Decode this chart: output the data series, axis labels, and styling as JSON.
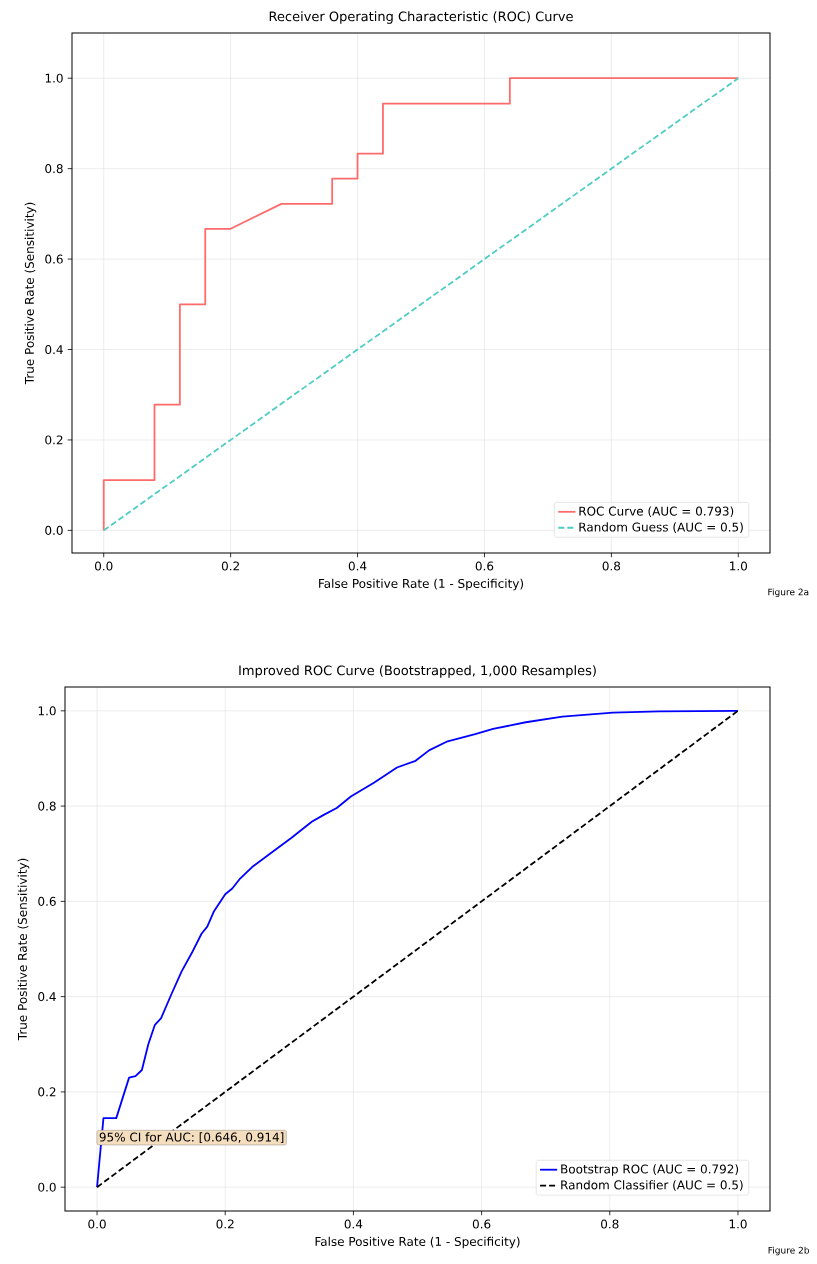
{
  "chart_data": [
    {
      "type": "line",
      "title": "Receiver Operating Characteristic (ROC) Curve",
      "xlabel": "False Positive Rate (1 - Specificity)",
      "ylabel": "True Positive Rate (Sensitivity)",
      "xlim": [
        -0.05,
        1.05
      ],
      "ylim": [
        -0.05,
        1.1
      ],
      "xticks": [
        {
          "value": 0,
          "label": "0.0"
        },
        {
          "value": 0.2,
          "label": "0.2"
        },
        {
          "value": 0.4,
          "label": "0.4"
        },
        {
          "value": 0.6,
          "label": "0.6"
        },
        {
          "value": 0.8,
          "label": "0.8"
        },
        {
          "value": 1,
          "label": "1.0"
        }
      ],
      "yticks": [
        {
          "value": 0,
          "label": "0.0"
        },
        {
          "value": 0.2,
          "label": "0.2"
        },
        {
          "value": 0.4,
          "label": "0.4"
        },
        {
          "value": 0.6,
          "label": "0.6"
        },
        {
          "value": 0.8,
          "label": "0.8"
        },
        {
          "value": 1,
          "label": "1.0"
        }
      ],
      "grid": true,
      "legend": "bottom right",
      "marker": "none",
      "series": [
        {
          "name": "ROC Curve (AUC = 0.793)",
          "color": "#ff6b6b",
          "line_style": "solid",
          "x": [
            0,
            0,
            0.08,
            0.08,
            0.12,
            0.12,
            0.16,
            0.16,
            0.2,
            0.28,
            0.36,
            0.36,
            0.4,
            0.4,
            0.44,
            0.44,
            0.64,
            0.64,
            1
          ],
          "values": [
            0,
            0.111,
            0.111,
            0.278,
            0.278,
            0.5,
            0.5,
            0.667,
            0.667,
            0.722,
            0.722,
            0.778,
            0.778,
            0.833,
            0.833,
            0.944,
            0.944,
            1,
            1
          ]
        },
        {
          "name": "Random Guess (AUC = 0.5)",
          "color": "#4ecdc4",
          "line_style": "dashed",
          "x": [
            0,
            1
          ],
          "values": [
            0,
            1
          ]
        }
      ],
      "annotations": [
        "Figure 2a"
      ]
    },
    {
      "type": "line",
      "title": "Improved ROC Curve (Bootstrapped, 1,000 Resamples)",
      "xlabel": "False Positive Rate (1 - Specificity)",
      "ylabel": "True Positive Rate (Sensitivity)",
      "xlim": [
        -0.05,
        1.05
      ],
      "ylim": [
        -0.05,
        1.05
      ],
      "xticks": [
        {
          "value": 0,
          "label": "0.0"
        },
        {
          "value": 0.2,
          "label": "0.2"
        },
        {
          "value": 0.4,
          "label": "0.4"
        },
        {
          "value": 0.6,
          "label": "0.6"
        },
        {
          "value": 0.8,
          "label": "0.8"
        },
        {
          "value": 1,
          "label": "1.0"
        }
      ],
      "yticks": [
        {
          "value": 0,
          "label": "0.0"
        },
        {
          "value": 0.2,
          "label": "0.2"
        },
        {
          "value": 0.4,
          "label": "0.4"
        },
        {
          "value": 0.6,
          "label": "0.6"
        },
        {
          "value": 0.8,
          "label": "0.8"
        },
        {
          "value": 1,
          "label": "1.0"
        }
      ],
      "grid": true,
      "legend": "bottom right",
      "marker": "none",
      "series": [
        {
          "name": "Bootstrap ROC (AUC = 0.792)",
          "color": "#0000ff",
          "line_style": "solid",
          "x": [
            0,
            0.01,
            0.03,
            0.05,
            0.06,
            0.07,
            0.08,
            0.09,
            0.1,
            0.116,
            0.132,
            0.148,
            0.163,
            0.172,
            0.182,
            0.2,
            0.211,
            0.222,
            0.242,
            0.274,
            0.303,
            0.335,
            0.353,
            0.374,
            0.396,
            0.432,
            0.468,
            0.497,
            0.518,
            0.547,
            0.59,
            0.618,
            0.669,
            0.726,
            0.805,
            0.877,
            1
          ],
          "values": [
            0,
            0.145,
            0.145,
            0.23,
            0.233,
            0.246,
            0.3,
            0.34,
            0.355,
            0.405,
            0.453,
            0.492,
            0.532,
            0.547,
            0.578,
            0.615,
            0.627,
            0.646,
            0.672,
            0.704,
            0.733,
            0.767,
            0.781,
            0.796,
            0.82,
            0.849,
            0.881,
            0.895,
            0.917,
            0.936,
            0.951,
            0.962,
            0.976,
            0.988,
            0.996,
            0.999,
            1
          ]
        },
        {
          "name": "Random Classifier (AUC = 0.5)",
          "color": "#000000",
          "line_style": "dashed",
          "x": [
            0,
            1
          ],
          "values": [
            0,
            1
          ]
        }
      ],
      "annotations": [
        "95% CI for AUC: [0.646, 0.914]",
        "Figure 2b"
      ]
    }
  ]
}
